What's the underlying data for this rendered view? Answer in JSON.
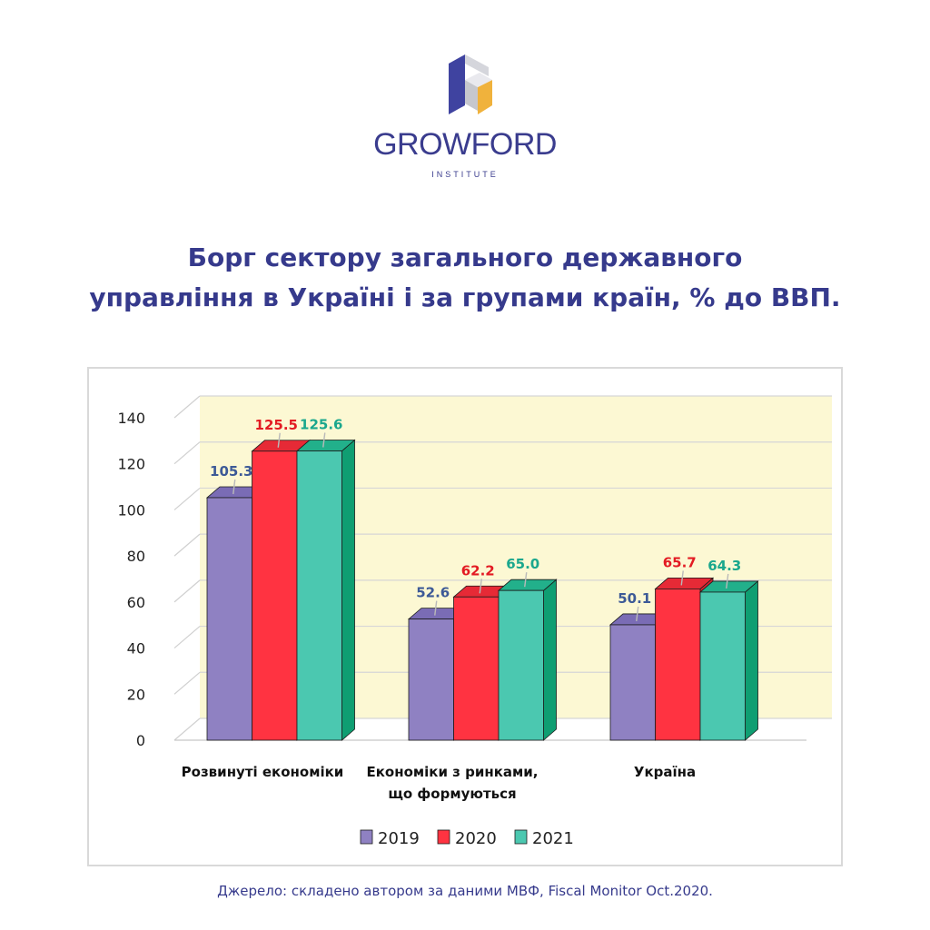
{
  "brand": {
    "name": "GROWFORD",
    "subtitle": "INSTITUTE",
    "logo_colors": {
      "purple": "#3f43a0",
      "gold": "#f0b23c",
      "gray": "#cfd0d6"
    }
  },
  "headline": {
    "line1": "Борг сектору загального державного",
    "line2": "управління в Україні і за групами країн, % до ВВП."
  },
  "source": "Джерело: складено автором за даними МВФ, Fiscal Monitor Oct.2020.",
  "chart_data": {
    "type": "bar",
    "categories": [
      [
        "Розвинуті економіки"
      ],
      [
        "Економіки з ринками,",
        "що формуються"
      ],
      [
        "Україна"
      ]
    ],
    "series": [
      {
        "name": "2019",
        "values": [
          105.3,
          52.6,
          50.1
        ],
        "labels": [
          "105.3",
          "52.6",
          "50.1"
        ],
        "color": "#8f81c2",
        "side": "#6f60a8",
        "top": "#7a6cb5",
        "label_color": "#3d5a97"
      },
      {
        "name": "2020",
        "values": [
          125.5,
          62.2,
          65.7
        ],
        "labels": [
          "125.5",
          "62.2",
          "65.7"
        ],
        "color": "#ff3341",
        "side": "#d6222f",
        "top": "#e62a36",
        "label_color": "#e31b23"
      },
      {
        "name": "2021",
        "values": [
          125.6,
          65.0,
          64.3
        ],
        "labels": [
          "125.6",
          "65.0",
          "64.3"
        ],
        "color": "#4bc8b0",
        "side": "#0f9e72",
        "top": "#22b08b",
        "label_color": "#1aa78d"
      }
    ],
    "yticks": [
      "0",
      "20",
      "40",
      "60",
      "80",
      "100",
      "120",
      "140"
    ],
    "ylim": [
      0,
      140
    ],
    "grid": true,
    "legend": "bottom",
    "plot_background": "#fcf8d3"
  }
}
